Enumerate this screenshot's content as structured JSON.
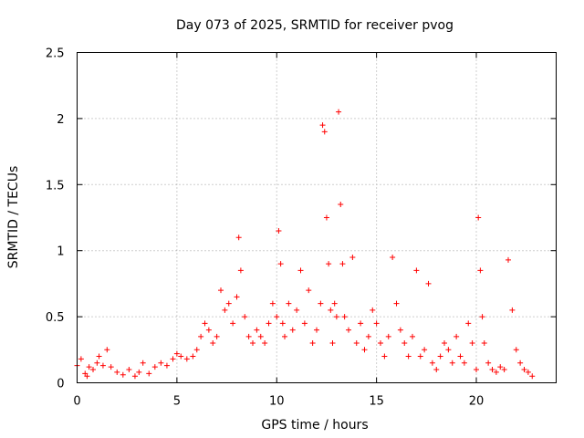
{
  "chart_data": {
    "type": "scatter",
    "title": "Day 073 of 2025, SRMTID for receiver pvog",
    "xlabel": "GPS time / hours",
    "ylabel": "SRMTID / TECUs",
    "xlim": [
      0,
      24
    ],
    "ylim": [
      0,
      2.5
    ],
    "x_ticks": [
      0,
      5,
      10,
      15,
      20
    ],
    "x_tick_labels": [
      "0",
      "5",
      "10",
      "15",
      "20"
    ],
    "y_ticks": [
      0,
      0.5,
      1,
      1.5,
      2,
      2.5
    ],
    "y_tick_labels": [
      "0",
      "0.5",
      "1",
      "1.5",
      "2",
      "2.5"
    ],
    "grid": true,
    "marker": "plus",
    "color": "#ff0000",
    "series": [
      {
        "name": "SRMTID",
        "x": [
          0.0,
          0.2,
          0.4,
          0.5,
          0.6,
          0.8,
          1.0,
          1.1,
          1.3,
          1.5,
          1.7,
          2.0,
          2.3,
          2.6,
          2.9,
          3.1,
          3.3,
          3.6,
          3.9,
          4.2,
          4.5,
          4.8,
          5.0,
          5.2,
          5.5,
          5.8,
          6.0,
          6.2,
          6.4,
          6.6,
          6.8,
          7.0,
          7.2,
          7.4,
          7.6,
          7.8,
          8.0,
          8.1,
          8.2,
          8.4,
          8.6,
          8.8,
          9.0,
          9.2,
          9.4,
          9.6,
          9.8,
          10.0,
          10.1,
          10.2,
          10.3,
          10.4,
          10.6,
          10.8,
          11.0,
          11.2,
          11.4,
          11.6,
          11.8,
          12.0,
          12.2,
          12.3,
          12.4,
          12.5,
          12.6,
          12.7,
          12.8,
          12.9,
          13.0,
          13.1,
          13.2,
          13.3,
          13.4,
          13.6,
          13.8,
          14.0,
          14.2,
          14.4,
          14.6,
          14.8,
          15.0,
          15.2,
          15.4,
          15.6,
          15.8,
          16.0,
          16.2,
          16.4,
          16.6,
          16.8,
          17.0,
          17.2,
          17.4,
          17.6,
          17.8,
          18.0,
          18.2,
          18.4,
          18.6,
          18.8,
          19.0,
          19.2,
          19.4,
          19.6,
          19.8,
          20.0,
          20.1,
          20.2,
          20.3,
          20.4,
          20.6,
          20.8,
          21.0,
          21.2,
          21.4,
          21.6,
          21.8,
          22.0,
          22.2,
          22.4,
          22.6,
          22.8
        ],
        "y": [
          0.13,
          0.18,
          0.07,
          0.05,
          0.12,
          0.1,
          0.15,
          0.2,
          0.13,
          0.25,
          0.12,
          0.08,
          0.06,
          0.1,
          0.05,
          0.08,
          0.15,
          0.07,
          0.12,
          0.15,
          0.13,
          0.18,
          0.22,
          0.2,
          0.18,
          0.2,
          0.25,
          0.35,
          0.45,
          0.4,
          0.3,
          0.35,
          0.7,
          0.55,
          0.6,
          0.45,
          0.65,
          1.1,
          0.85,
          0.5,
          0.35,
          0.3,
          0.4,
          0.35,
          0.3,
          0.45,
          0.6,
          0.5,
          1.15,
          0.9,
          0.45,
          0.35,
          0.6,
          0.4,
          0.55,
          0.85,
          0.45,
          0.7,
          0.3,
          0.4,
          0.6,
          1.95,
          1.9,
          1.25,
          0.9,
          0.55,
          0.3,
          0.6,
          0.5,
          2.05,
          1.35,
          0.9,
          0.5,
          0.4,
          0.95,
          0.3,
          0.45,
          0.25,
          0.35,
          0.55,
          0.45,
          0.3,
          0.2,
          0.35,
          0.95,
          0.6,
          0.4,
          0.3,
          0.2,
          0.35,
          0.85,
          0.2,
          0.25,
          0.75,
          0.15,
          0.1,
          0.2,
          0.3,
          0.25,
          0.15,
          0.35,
          0.2,
          0.15,
          0.45,
          0.3,
          0.1,
          1.25,
          0.85,
          0.5,
          0.3,
          0.15,
          0.1,
          0.08,
          0.12,
          0.1,
          0.93,
          0.55,
          0.25,
          0.15,
          0.1,
          0.08,
          0.05
        ]
      }
    ]
  }
}
